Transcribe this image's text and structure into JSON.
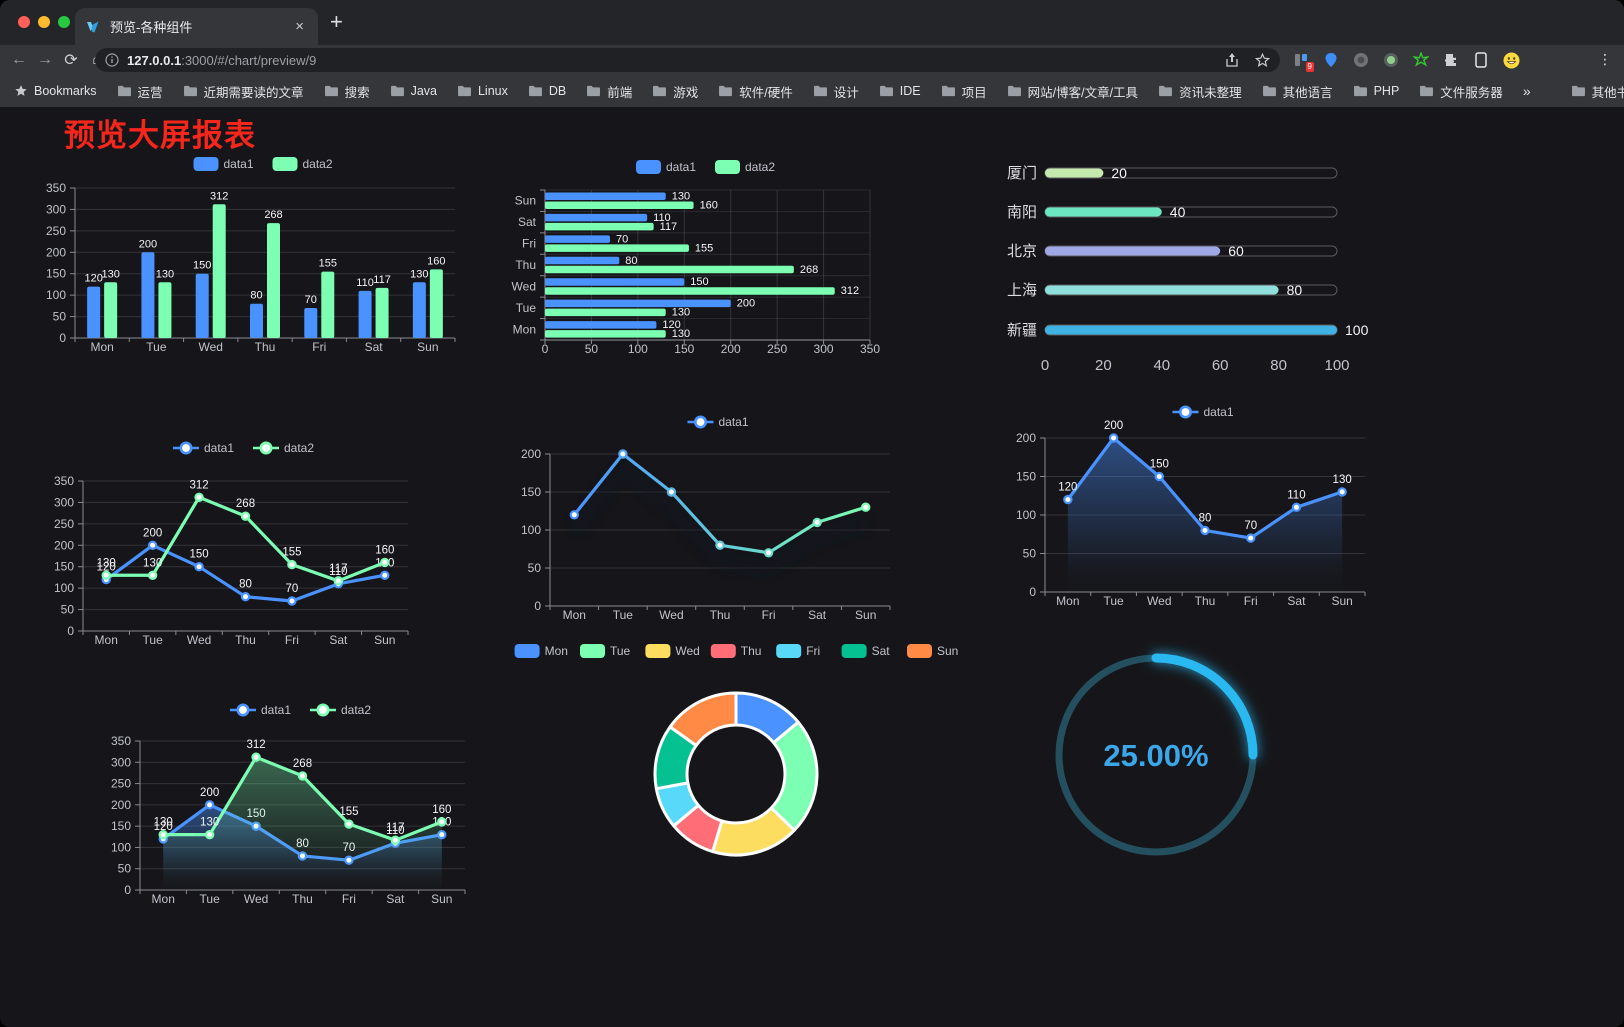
{
  "browser": {
    "traffic_lights": [
      "#ff5f57",
      "#febc2e",
      "#28c840"
    ],
    "tab": {
      "title": "预览-各种组件",
      "close": "×",
      "new_tab": "+"
    },
    "nav": {
      "back": "←",
      "forward": "→",
      "reload": "⟳",
      "home": "⌂"
    },
    "url": {
      "host": "127.0.0.1",
      "rest": ":3000/#/chart/preview/9"
    },
    "extensions_badge": "9",
    "bookmarks_bar": {
      "bookmarks_label": "Bookmarks",
      "folders": [
        "运营",
        "近期需要读的文章",
        "搜索",
        "Java",
        "Linux",
        "DB",
        "前端",
        "游戏",
        "软件/硬件",
        "设计",
        "IDE",
        "项目",
        "网站/博客/文章/工具",
        "资讯未整理",
        "其他语言",
        "PHP",
        "文件服务器"
      ],
      "overflow": "»",
      "other_bookmarks": "其他书签"
    }
  },
  "page": {
    "title": "预览大屏报表",
    "title_color": "#f5261c"
  },
  "colors": {
    "data1_blue": "#4992ff",
    "data2_green": "#7cffb2",
    "axis_label": "#c2c2cc",
    "axis_line": "#8a8a94",
    "grid_line": "rgba(255,255,255,0.13)",
    "value_label": "#f5f5f7",
    "gauge_blue": "#2ab8f0",
    "gauge_text": "#3ba7ea",
    "gauge_track": "#234f5e"
  },
  "chart_data": [
    {
      "id": "c1",
      "type": "bar",
      "categories": [
        "Mon",
        "Tue",
        "Wed",
        "Thu",
        "Fri",
        "Sat",
        "Sun"
      ],
      "series": [
        {
          "name": "data1",
          "color": "#4992ff",
          "values": [
            120,
            200,
            150,
            80,
            70,
            110,
            130
          ]
        },
        {
          "name": "data2",
          "color": "#7cffb2",
          "values": [
            130,
            130,
            312,
            268,
            155,
            117,
            160
          ]
        }
      ],
      "ylim": [
        0,
        350
      ],
      "ystep": 50,
      "legend_position": "top",
      "labels": true
    },
    {
      "id": "c2",
      "type": "bar-horizontal",
      "categories": [
        "Mon",
        "Tue",
        "Wed",
        "Thu",
        "Fri",
        "Sat",
        "Sun"
      ],
      "display_order_top_to_bottom": [
        "Sun",
        "Sat",
        "Fri",
        "Thu",
        "Wed",
        "Tue",
        "Mon"
      ],
      "series": [
        {
          "name": "data1",
          "color": "#4992ff",
          "values": [
            120,
            200,
            150,
            80,
            70,
            110,
            130
          ]
        },
        {
          "name": "data2",
          "color": "#7cffb2",
          "values": [
            130,
            130,
            312,
            268,
            155,
            117,
            160
          ]
        }
      ],
      "xlim": [
        0,
        350
      ],
      "xstep": 50,
      "legend_position": "top",
      "labels": true
    },
    {
      "id": "c3",
      "type": "bar-progress",
      "rows": [
        {
          "label": "厦门",
          "value": 20,
          "color": "#c4ebad"
        },
        {
          "label": "南阳",
          "value": 40,
          "color": "#6be6c1"
        },
        {
          "label": "北京",
          "value": 60,
          "color": "#a0a7e6"
        },
        {
          "label": "上海",
          "value": 80,
          "color": "#8fe0dc"
        },
        {
          "label": "新疆",
          "value": 100,
          "color": "#3fb1e3"
        }
      ],
      "xlim": [
        0,
        100
      ],
      "xticks": [
        0,
        20,
        40,
        60,
        80,
        100
      ]
    },
    {
      "id": "c4",
      "type": "line",
      "categories": [
        "Mon",
        "Tue",
        "Wed",
        "Thu",
        "Fri",
        "Sat",
        "Sun"
      ],
      "series": [
        {
          "name": "data1",
          "color": "#4992ff",
          "values": [
            120,
            200,
            150,
            80,
            70,
            110,
            130
          ]
        },
        {
          "name": "data2",
          "color": "#7cffb2",
          "values": [
            130,
            130,
            312,
            268,
            155,
            117,
            160
          ]
        }
      ],
      "ylim": [
        0,
        350
      ],
      "ystep": 50,
      "legend_position": "top",
      "labels": true
    },
    {
      "id": "c5",
      "type": "line-gradient",
      "categories": [
        "Mon",
        "Tue",
        "Wed",
        "Thu",
        "Fri",
        "Sat",
        "Sun"
      ],
      "series": [
        {
          "name": "data1",
          "color_start": "#4992ff",
          "color_end": "#7cffb2",
          "values": [
            120,
            200,
            150,
            80,
            70,
            110,
            130
          ]
        }
      ],
      "ylim": [
        0,
        200
      ],
      "ystep": 50,
      "legend_position": "top",
      "labels": false
    },
    {
      "id": "c6",
      "type": "area",
      "categories": [
        "Mon",
        "Tue",
        "Wed",
        "Thu",
        "Fri",
        "Sat",
        "Sun"
      ],
      "series": [
        {
          "name": "data1",
          "color": "#4992ff",
          "values": [
            120,
            200,
            150,
            80,
            70,
            110,
            130
          ]
        }
      ],
      "ylim": [
        0,
        200
      ],
      "ystep": 50,
      "legend_position": "top",
      "labels": true
    },
    {
      "id": "c7",
      "type": "area",
      "categories": [
        "Mon",
        "Tue",
        "Wed",
        "Thu",
        "Fri",
        "Sat",
        "Sun"
      ],
      "series": [
        {
          "name": "data1",
          "color": "#4992ff",
          "values": [
            120,
            200,
            150,
            80,
            70,
            110,
            130
          ]
        },
        {
          "name": "data2",
          "color": "#7cffb2",
          "values": [
            130,
            130,
            312,
            268,
            155,
            117,
            160
          ]
        }
      ],
      "ylim": [
        0,
        350
      ],
      "ystep": 50,
      "legend_position": "top",
      "labels": true
    },
    {
      "id": "c8",
      "type": "pie",
      "categories": [
        "Mon",
        "Tue",
        "Wed",
        "Thu",
        "Fri",
        "Sat",
        "Sun"
      ],
      "values": [
        120,
        200,
        150,
        80,
        70,
        110,
        130
      ],
      "colors": [
        "#4992ff",
        "#7cffb2",
        "#fddd60",
        "#ff6e76",
        "#58d9f9",
        "#05c091",
        "#ff8a45"
      ],
      "legend_position": "top"
    },
    {
      "id": "c9",
      "type": "gauge",
      "value": 25,
      "label": "25.00%"
    }
  ]
}
